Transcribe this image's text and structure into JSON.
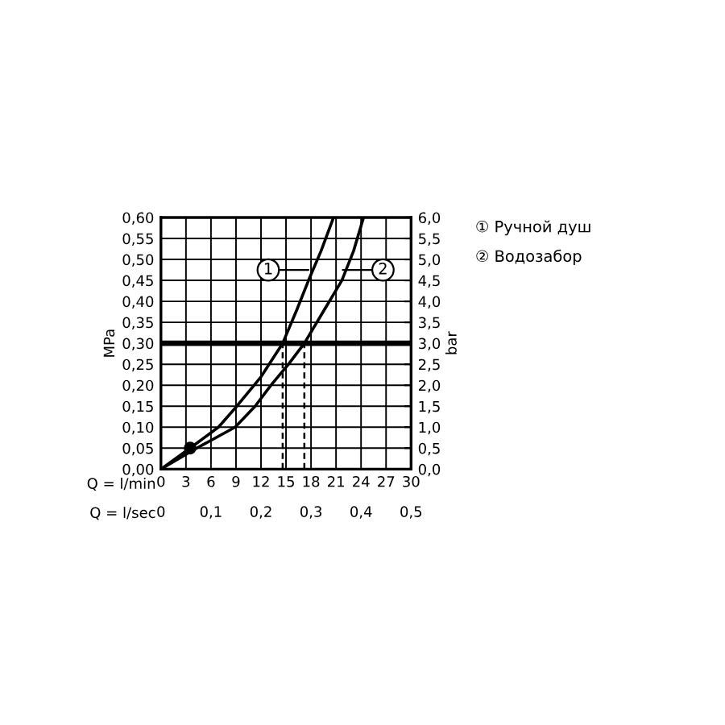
{
  "chart_data": {
    "type": "line",
    "xlabel": "Q = l/min",
    "x2label": "Q = l/sec",
    "ylabel": "MPa",
    "y2label": "bar",
    "xlim": [
      0,
      30
    ],
    "xticks": [
      0,
      3,
      6,
      9,
      12,
      15,
      18,
      21,
      24,
      27,
      30
    ],
    "x2lim": [
      0,
      0.5
    ],
    "x2ticks": [
      0,
      {
        "value": 0.1,
        "label": "0,1"
      },
      {
        "value": 0.2,
        "label": "0,2"
      },
      {
        "value": 0.3,
        "label": "0,3"
      },
      {
        "value": 0.4,
        "label": "0,4"
      },
      {
        "value": 0.5,
        "label": "0,5"
      }
    ],
    "ylim": [
      0,
      0.6
    ],
    "yticks": [
      {
        "value": 0,
        "label": "0,00"
      },
      {
        "value": 0.05,
        "label": "0,05"
      },
      {
        "value": 0.1,
        "label": "0,10"
      },
      {
        "value": 0.15,
        "label": "0,15"
      },
      {
        "value": 0.2,
        "label": "0,20"
      },
      {
        "value": 0.25,
        "label": "0,25"
      },
      {
        "value": 0.3,
        "label": "0,30"
      },
      {
        "value": 0.35,
        "label": "0,35"
      },
      {
        "value": 0.4,
        "label": "0,40"
      },
      {
        "value": 0.45,
        "label": "0,45"
      },
      {
        "value": 0.5,
        "label": "0,50"
      },
      {
        "value": 0.55,
        "label": "0,55"
      },
      {
        "value": 0.6,
        "label": "0,60"
      }
    ],
    "y2lim": [
      0,
      6
    ],
    "y2ticks": [
      {
        "value": 0,
        "label": "0,0"
      },
      {
        "value": 0.5,
        "label": "0,5"
      },
      {
        "value": 1,
        "label": "1,0"
      },
      {
        "value": 1.5,
        "label": "1,5"
      },
      {
        "value": 2,
        "label": "2,0"
      },
      {
        "value": 2.5,
        "label": "2,5"
      },
      {
        "value": 3,
        "label": "3,0"
      },
      {
        "value": 3.5,
        "label": "3,5"
      },
      {
        "value": 4,
        "label": "4,0"
      },
      {
        "value": 4.5,
        "label": "4,5"
      },
      {
        "value": 5,
        "label": "5,0"
      },
      {
        "value": 5.5,
        "label": "5,5"
      },
      {
        "value": 6,
        "label": "6,0"
      }
    ],
    "grid": true,
    "legend": "right",
    "series": [
      {
        "name": "① Ручной душ",
        "color": "#000000",
        "x": [
          0,
          3.5,
          6.9,
          9.1,
          12,
          14.6,
          16.3,
          17.7,
          19.2,
          20.7
        ],
        "values": [
          0,
          0.05,
          0.1,
          0.15,
          0.22,
          0.3,
          0.38,
          0.45,
          0.52,
          0.6
        ]
      },
      {
        "name": "② Водозабор",
        "color": "#000000",
        "x": [
          0,
          4.3,
          8.9,
          11.3,
          13.2,
          15.3,
          17.2,
          19.6,
          21.7,
          23.1,
          24.3
        ],
        "values": [
          0,
          0.05,
          0.1,
          0.15,
          0.2,
          0.25,
          0.3,
          0.38,
          0.45,
          0.52,
          0.6
        ]
      },
      {
        "type": "scatter",
        "color": "#000000",
        "marker": "circle",
        "x": [
          3.5
        ],
        "values": [
          0.05
        ]
      },
      {
        "color": "#000000",
        "line_style": "dashed",
        "x": [
          14.6,
          14.6
        ],
        "values": [
          0,
          0.3
        ]
      },
      {
        "color": "#000000",
        "line_style": "dashed",
        "x": [
          17.2,
          17.2
        ],
        "values": [
          0,
          0.3
        ]
      }
    ],
    "ref_lines": [
      {
        "axis": "y",
        "value": 0.3,
        "color": "#000000"
      }
    ],
    "annotations": [
      {
        "text": "1",
        "x": 17.7,
        "y": 0.475
      },
      {
        "text": "2",
        "x": 21.8,
        "y": 0.475
      }
    ]
  }
}
